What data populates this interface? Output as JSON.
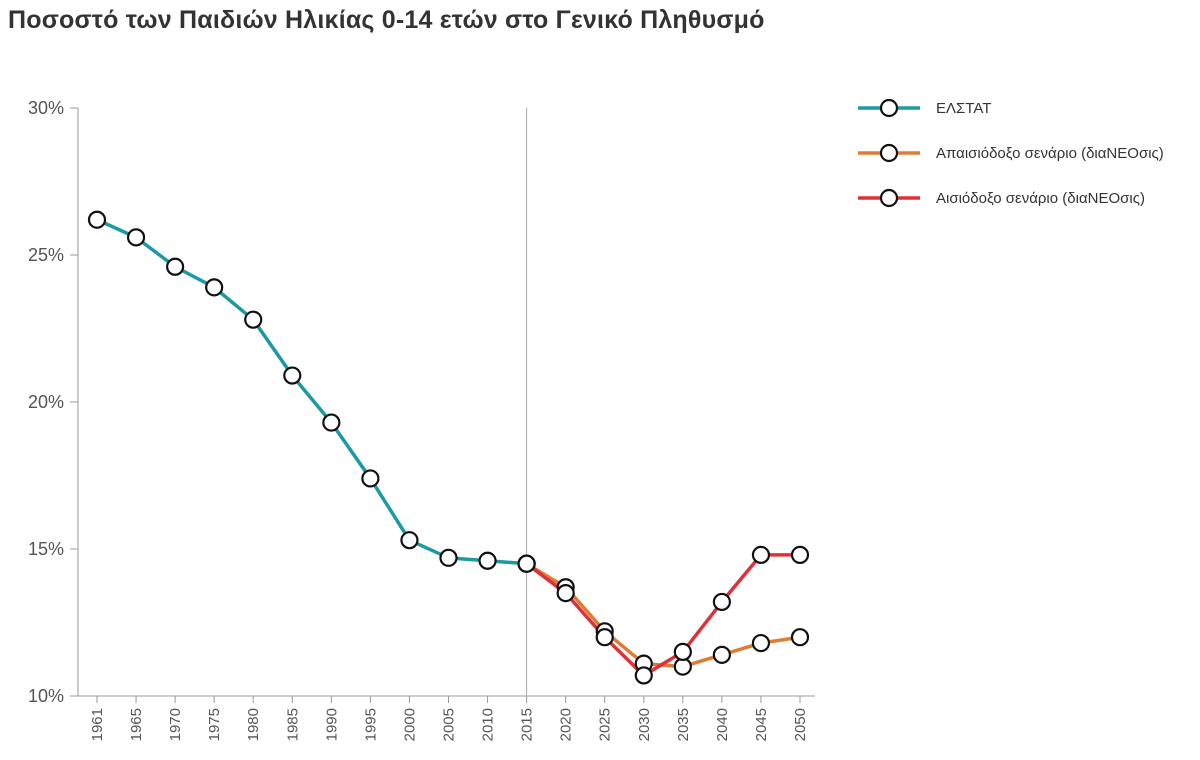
{
  "chart_data": {
    "type": "line",
    "title": "Ποσοστό των Παιδιών Ηλικίας 0-14 ετών στο Γενικό Πληθυσμό",
    "xlabel": "",
    "ylabel": "",
    "x": [
      "1961",
      "1965",
      "1970",
      "1975",
      "1980",
      "1985",
      "1990",
      "1995",
      "2000",
      "2005",
      "2010",
      "2015",
      "2020",
      "2025",
      "2030",
      "2035",
      "2040",
      "2045",
      "2050"
    ],
    "ylim": [
      10,
      30
    ],
    "yticks": [
      10,
      15,
      20,
      25,
      30
    ],
    "ytick_labels": [
      "10%",
      "15%",
      "20%",
      "25%",
      "30%"
    ],
    "divider_at": "2015",
    "legend_position": "top-right",
    "series": [
      {
        "name": "ΕΛΣΤΑΤ",
        "color": "#1a9aa5",
        "values": [
          26.2,
          25.6,
          24.6,
          23.9,
          22.8,
          20.9,
          19.3,
          17.4,
          15.3,
          14.7,
          14.6,
          14.5,
          null,
          null,
          null,
          null,
          null,
          null,
          null
        ]
      },
      {
        "name": "Απαισιόδοξο σενάριο (διαΝΕΟσις)",
        "color": "#e07b35",
        "values": [
          null,
          null,
          null,
          null,
          null,
          null,
          null,
          null,
          null,
          null,
          null,
          14.5,
          13.7,
          12.2,
          11.1,
          11.0,
          11.4,
          11.8,
          12.0
        ]
      },
      {
        "name": "Αισιόδοξο σενάριο (διαΝΕΟσις)",
        "color": "#e03038",
        "values": [
          null,
          null,
          null,
          null,
          null,
          null,
          null,
          null,
          null,
          null,
          null,
          14.5,
          13.5,
          12.0,
          10.7,
          11.5,
          13.2,
          14.8,
          14.8
        ]
      }
    ]
  }
}
